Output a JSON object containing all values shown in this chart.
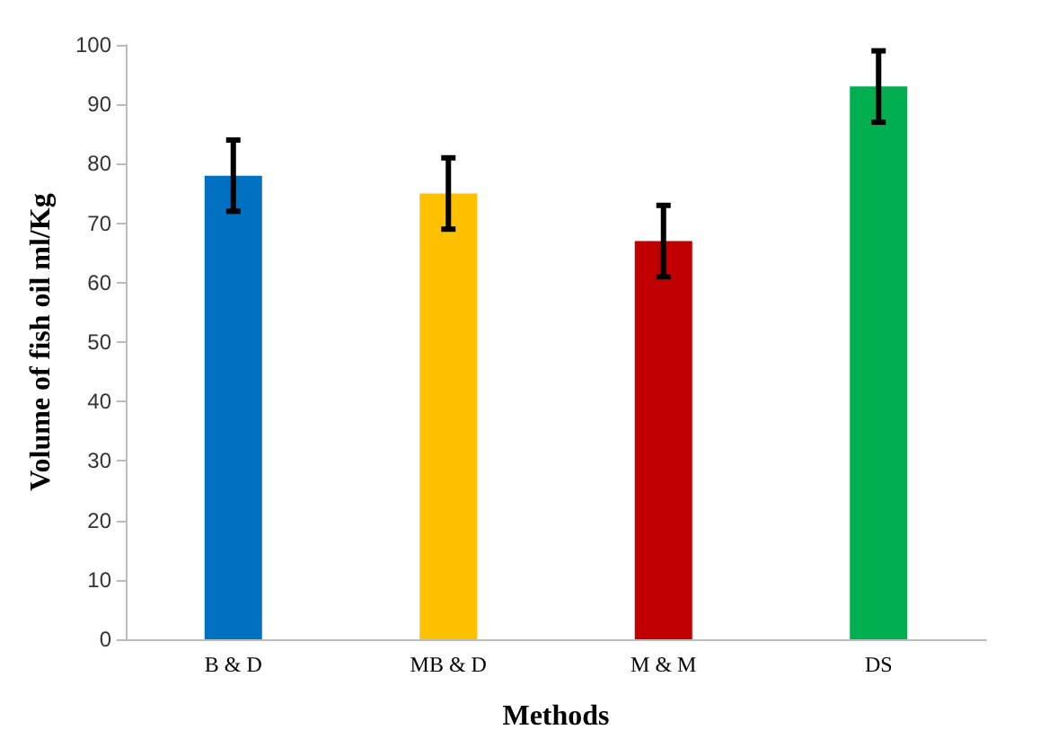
{
  "chart_data": {
    "type": "bar",
    "xlabel": "Methods",
    "ylabel": "Volume of fish oil ml/Kg",
    "categories": [
      "B & D",
      "MB & D",
      "M & M",
      "DS"
    ],
    "values": [
      78,
      75,
      67,
      93
    ],
    "colors": [
      "#0070c0",
      "#ffc000",
      "#c00000",
      "#00b050"
    ],
    "errors": [
      6,
      6,
      6,
      6
    ],
    "ylim": [
      0,
      100
    ],
    "yticks": [
      0,
      10,
      20,
      30,
      40,
      50,
      60,
      70,
      80,
      90,
      100
    ],
    "grid": false
  }
}
